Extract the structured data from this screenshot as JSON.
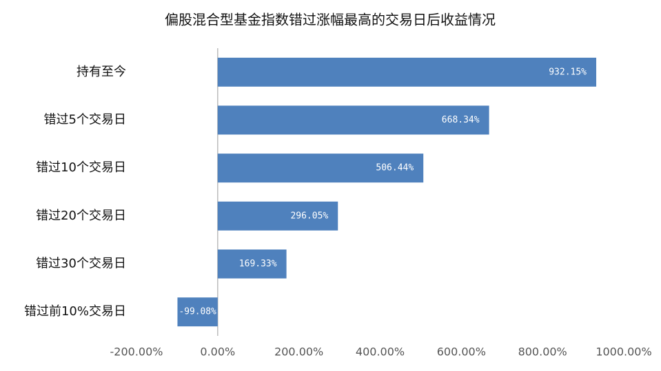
{
  "chart_data": {
    "type": "bar",
    "orientation": "horizontal",
    "title": "偏股混合型基金指数错过涨幅最高的交易日后收益情况",
    "categories": [
      "持有至今",
      "错过5个交易日",
      "错过10个交易日",
      "错过20个交易日",
      "错过30个交易日",
      "错过前10%交易日"
    ],
    "values": [
      932.15,
      668.34,
      506.44,
      296.05,
      169.33,
      -99.08
    ],
    "value_labels": [
      "932.15%",
      "668.34%",
      "506.44%",
      "296.05%",
      "169.33%",
      "-99.08%"
    ],
    "color": "#4f81bd",
    "xlim": [
      -200,
      1000
    ],
    "xticks": [
      {
        "value": -200,
        "label": "-200.00%"
      },
      {
        "value": 0,
        "label": "0.00%"
      },
      {
        "value": 200,
        "label": "200.00%"
      },
      {
        "value": 400,
        "label": "400.00%"
      },
      {
        "value": 600,
        "label": "600.00%"
      },
      {
        "value": 800,
        "label": "800.00%"
      },
      {
        "value": 1000,
        "label": "1000.00%"
      }
    ],
    "grid": false
  }
}
